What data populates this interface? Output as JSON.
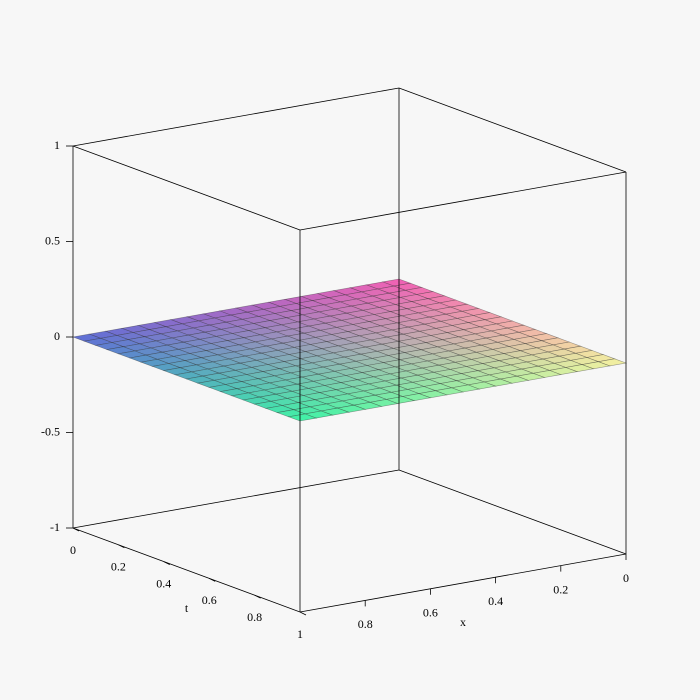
{
  "chart_data": {
    "type": "surface",
    "xlabel": "x",
    "tlabel": "t",
    "x": [
      0,
      0.05,
      0.1,
      0.15,
      0.2,
      0.25,
      0.3,
      0.35,
      0.4,
      0.45,
      0.5,
      0.55,
      0.6,
      0.65,
      0.7,
      0.75,
      0.8,
      0.85,
      0.9,
      0.95,
      1
    ],
    "t": [
      0,
      0.05,
      0.1,
      0.15,
      0.2,
      0.25,
      0.3,
      0.35,
      0.4,
      0.45,
      0.5,
      0.55,
      0.6,
      0.65,
      0.7,
      0.75,
      0.8,
      0.85,
      0.9,
      0.95,
      1
    ],
    "z": [
      [
        0,
        0,
        0,
        0,
        0,
        0,
        0,
        0,
        0,
        0,
        0,
        0,
        0,
        0,
        0,
        0,
        0,
        0,
        0,
        0,
        0
      ],
      [
        0,
        0,
        0,
        0,
        0,
        0,
        0,
        0,
        0,
        0,
        0,
        0,
        0,
        0,
        0,
        0,
        0,
        0,
        0,
        0,
        0
      ],
      [
        0,
        0,
        0,
        0,
        0,
        0,
        0,
        0,
        0,
        0,
        0,
        0,
        0,
        0,
        0,
        0,
        0,
        0,
        0,
        0,
        0
      ],
      [
        0,
        0,
        0,
        0,
        0,
        0,
        0,
        0,
        0,
        0,
        0,
        0,
        0,
        0,
        0,
        0,
        0,
        0,
        0,
        0,
        0
      ],
      [
        0,
        0,
        0,
        0,
        0,
        0,
        0,
        0,
        0,
        0,
        0,
        0,
        0,
        0,
        0,
        0,
        0,
        0,
        0,
        0,
        0
      ],
      [
        0,
        0,
        0,
        0,
        0,
        0,
        0,
        0,
        0,
        0,
        0,
        0,
        0,
        0,
        0,
        0,
        0,
        0,
        0,
        0,
        0
      ],
      [
        0,
        0,
        0,
        0,
        0,
        0,
        0,
        0,
        0,
        0,
        0,
        0,
        0,
        0,
        0,
        0,
        0,
        0,
        0,
        0,
        0
      ],
      [
        0,
        0,
        0,
        0,
        0,
        0,
        0,
        0,
        0,
        0,
        0,
        0,
        0,
        0,
        0,
        0,
        0,
        0,
        0,
        0,
        0
      ],
      [
        0,
        0,
        0,
        0,
        0,
        0,
        0,
        0,
        0,
        0,
        0,
        0,
        0,
        0,
        0,
        0,
        0,
        0,
        0,
        0,
        0
      ],
      [
        0,
        0,
        0,
        0,
        0,
        0,
        0,
        0,
        0,
        0,
        0,
        0,
        0,
        0,
        0,
        0,
        0,
        0,
        0,
        0,
        0
      ],
      [
        0,
        0,
        0,
        0,
        0,
        0,
        0,
        0,
        0,
        0,
        0,
        0,
        0,
        0,
        0,
        0,
        0,
        0,
        0,
        0,
        0
      ],
      [
        0,
        0,
        0,
        0,
        0,
        0,
        0,
        0,
        0,
        0,
        0,
        0,
        0,
        0,
        0,
        0,
        0,
        0,
        0,
        0,
        0
      ],
      [
        0,
        0,
        0,
        0,
        0,
        0,
        0,
        0,
        0,
        0,
        0,
        0,
        0,
        0,
        0,
        0,
        0,
        0,
        0,
        0,
        0
      ],
      [
        0,
        0,
        0,
        0,
        0,
        0,
        0,
        0,
        0,
        0,
        0,
        0,
        0,
        0,
        0,
        0,
        0,
        0,
        0,
        0,
        0
      ],
      [
        0,
        0,
        0,
        0,
        0,
        0,
        0,
        0,
        0,
        0,
        0,
        0,
        0,
        0,
        0,
        0,
        0,
        0,
        0,
        0,
        0
      ],
      [
        0,
        0,
        0,
        0,
        0,
        0,
        0,
        0,
        0,
        0,
        0,
        0,
        0,
        0,
        0,
        0,
        0,
        0,
        0,
        0,
        0
      ],
      [
        0,
        0,
        0,
        0,
        0,
        0,
        0,
        0,
        0,
        0,
        0,
        0,
        0,
        0,
        0,
        0,
        0,
        0,
        0,
        0,
        0
      ],
      [
        0,
        0,
        0,
        0,
        0,
        0,
        0,
        0,
        0,
        0,
        0,
        0,
        0,
        0,
        0,
        0,
        0,
        0,
        0,
        0,
        0
      ],
      [
        0,
        0,
        0,
        0,
        0,
        0,
        0,
        0,
        0,
        0,
        0,
        0,
        0,
        0,
        0,
        0,
        0,
        0,
        0,
        0,
        0
      ],
      [
        0,
        0,
        0,
        0,
        0,
        0,
        0,
        0,
        0,
        0,
        0,
        0,
        0,
        0,
        0,
        0,
        0,
        0,
        0,
        0,
        0
      ],
      [
        0,
        0,
        0,
        0,
        0,
        0,
        0,
        0,
        0,
        0,
        0,
        0,
        0,
        0,
        0,
        0,
        0,
        0,
        0,
        0,
        0
      ]
    ],
    "colors": [
      "#f25fb4",
      "#5f6ed6",
      "#3ff2a6",
      "#f5f2a0"
    ],
    "xlim": [
      0,
      1
    ],
    "tlim": [
      0,
      1
    ],
    "zlim": [
      -1,
      1
    ],
    "xticks": [
      0,
      0.2,
      0.4,
      0.6,
      0.8
    ],
    "tticks": [
      0,
      0.2,
      0.4,
      0.6,
      0.8,
      1
    ],
    "zticks": [
      -1,
      -0.5,
      0,
      0.5,
      1
    ]
  }
}
